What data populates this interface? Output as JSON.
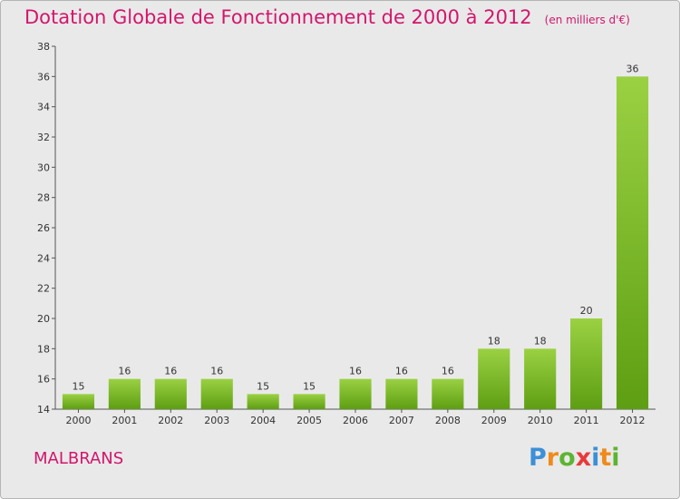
{
  "chart_data": {
    "type": "bar",
    "title": "Dotation Globale de Fonctionnement de 2000 à 2012",
    "unit_note": "(en milliers d'€)",
    "categories": [
      "2000",
      "2001",
      "2002",
      "2003",
      "2004",
      "2005",
      "2006",
      "2007",
      "2008",
      "2009",
      "2010",
      "2011",
      "2012"
    ],
    "values": [
      15,
      16,
      16,
      16,
      15,
      15,
      16,
      16,
      16,
      18,
      18,
      20,
      36
    ],
    "ylim": [
      14,
      38
    ],
    "yticks": [
      14,
      16,
      18,
      20,
      22,
      24,
      26,
      28,
      30,
      32,
      34,
      36,
      38
    ],
    "grid": false,
    "bar_color_top": "#9ad143",
    "bar_color_bottom": "#5e9e12"
  },
  "commune": "MALBRANS",
  "logo": {
    "letters": [
      "P",
      "r",
      "o",
      "x",
      "i",
      "t",
      "i"
    ],
    "colors": [
      "#3d8fd6",
      "#f08a1c",
      "#5cb531",
      "#e83a3a",
      "#3d8fd6",
      "#f08a1c",
      "#5cb531"
    ]
  },
  "colors": {
    "accent": "#d2166d",
    "background": "#e9e9e9"
  }
}
